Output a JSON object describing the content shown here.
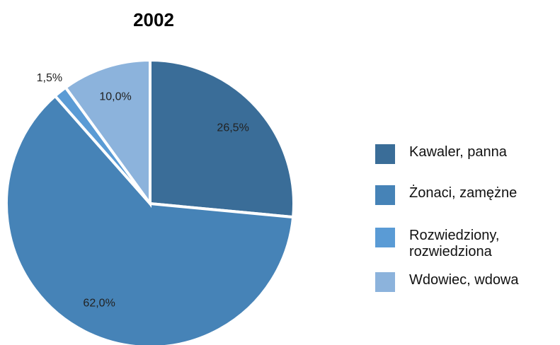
{
  "chart_data": {
    "type": "pie",
    "title": "2002",
    "categories": [
      "Kawaler, panna",
      "Żonaci, zamężne",
      "Rozwiedziony, rozwiedziona",
      "Wdowiec, wdowa"
    ],
    "values": [
      26.5,
      62.0,
      1.5,
      10.0
    ],
    "value_labels": [
      "26,5%",
      "62,0%",
      "1,5%",
      "10,0%"
    ],
    "colors": [
      "#3a6d98",
      "#4683b7",
      "#5a9bd5",
      "#8cb3dc"
    ],
    "legend": "right"
  }
}
